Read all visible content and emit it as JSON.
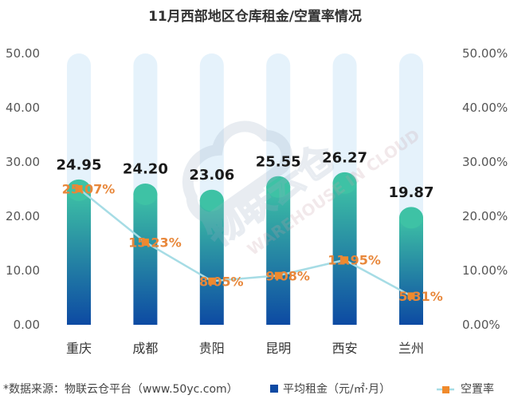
{
  "chart_data": {
    "type": "bar",
    "title": "11月西部地区仓库租金/空置率情况",
    "categories": [
      "重庆",
      "成都",
      "贵阳",
      "昆明",
      "西安",
      "兰州"
    ],
    "series": [
      {
        "name": "平均租金（元/㎡·月）",
        "type": "bar",
        "axis": "left",
        "values": [
          24.95,
          24.2,
          23.06,
          25.55,
          26.27,
          19.87
        ],
        "labels": [
          "24.95",
          "24.20",
          "23.06",
          "25.55",
          "26.27",
          "19.87"
        ]
      },
      {
        "name": "空置率",
        "type": "line",
        "axis": "right",
        "values": [
          25.07,
          15.23,
          8.05,
          9.08,
          11.95,
          5.31
        ],
        "labels": [
          "25.07%",
          "15.23%",
          "8.05%",
          "9.08%",
          "11.95%",
          "5.31%"
        ]
      }
    ],
    "ylim_left": [
      0,
      50
    ],
    "yticks_left": [
      "0.00",
      "10.00",
      "20.00",
      "30.00",
      "40.00",
      "50.00"
    ],
    "ylim_right": [
      0,
      50
    ],
    "yticks_right": [
      "0.00%",
      "10.00%",
      "20.00%",
      "30.00%",
      "40.00%",
      "50.00%"
    ],
    "legend_position": "bottom-right",
    "grid": false
  },
  "footer": {
    "source": "*数据来源：物联云仓平台（www.50yc.com）"
  },
  "watermark": {
    "cn": "物联云仓",
    "en": "WAREHOUSE IN CLOUD"
  },
  "colors": {
    "bar_top": "#3ec2a5",
    "bar_bottom": "#0d4aa3",
    "bar_track": "#e5f2fb",
    "line": "#a6dce5",
    "marker": "#f08a2c",
    "rate_label": "#e8873a"
  }
}
